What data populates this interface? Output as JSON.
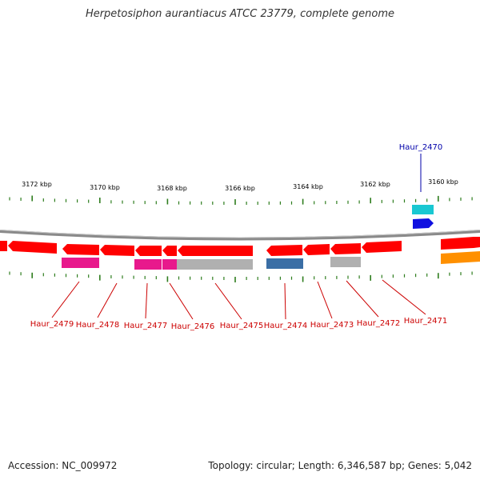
{
  "title": "Herpetosiphon aurantiacus ATCC 23779, complete genome",
  "footer": {
    "accession": "Accession: NC_009972",
    "stats": "Topology: circular; Length: 6,346,587 bp; Genes: 5,042"
  },
  "colors": {
    "backbone": "#8a8a8a",
    "tick": "#2e7d1e",
    "cds": "#ff0000",
    "pink": "#e8198c",
    "gray": "#b0b0b0",
    "steelblue": "#3a6ea5",
    "cyan": "#19c8d2",
    "blue": "#1010e0",
    "orange": "#ff9000",
    "label_red": "#cc0000",
    "label_blue": "#0000aa"
  },
  "scale_labels": [
    "3172 kbp",
    "3170 kbp",
    "3168 kbp",
    "3166 kbp",
    "3164 kbp",
    "3162 kbp",
    "3160 kbp"
  ],
  "gene_labels": [
    {
      "text": "Haur_2479",
      "color": "label_red"
    },
    {
      "text": "Haur_2478",
      "color": "label_red"
    },
    {
      "text": "Haur_2477",
      "color": "label_red"
    },
    {
      "text": "Haur_2476",
      "color": "label_red"
    },
    {
      "text": "Haur_2475",
      "color": "label_red"
    },
    {
      "text": "Haur_2474",
      "color": "label_red"
    },
    {
      "text": "Haur_2473",
      "color": "label_red"
    },
    {
      "text": "Haur_2472",
      "color": "label_red"
    },
    {
      "text": "Haur_2471",
      "color": "label_red"
    },
    {
      "text": "Haur_2470",
      "color": "label_blue"
    }
  ]
}
